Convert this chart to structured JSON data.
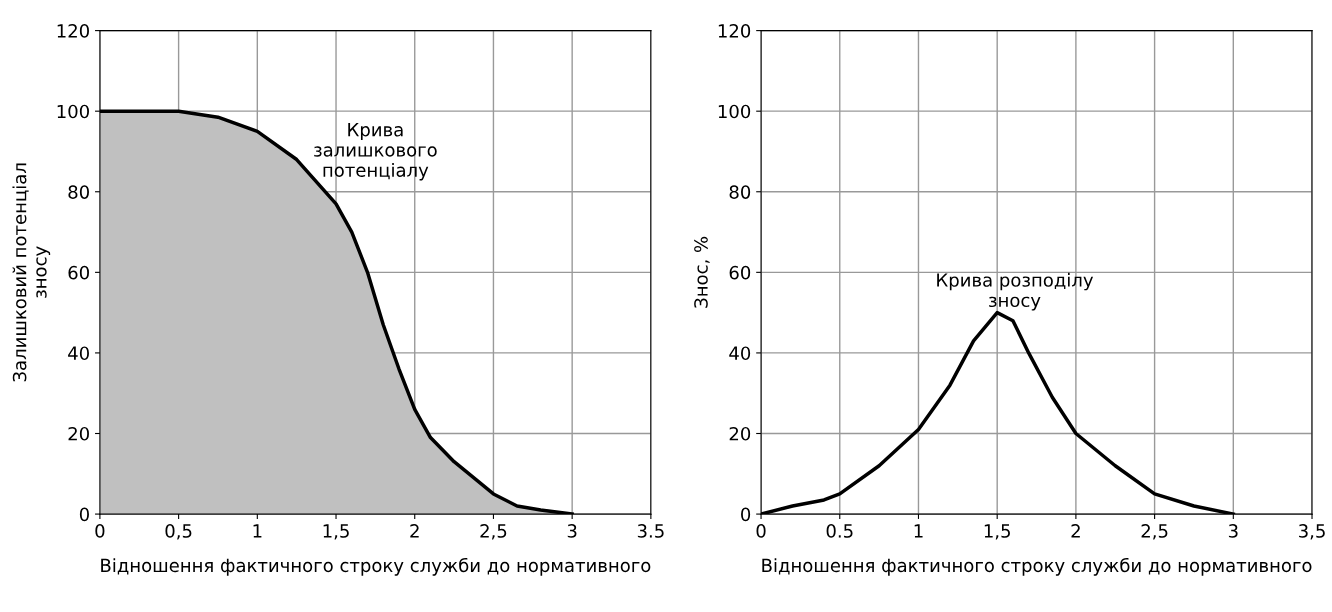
{
  "chart_data": [
    {
      "type": "area",
      "xlabel": "Відношення фактичного строку служби до нормативного",
      "ylabel": "Залишковий потенціал\nзносу",
      "series": [
        {
          "color": "#c0c0c0",
          "x": [
            0,
            0.25,
            0.5,
            0.75,
            1,
            1.25,
            1.5,
            1.6,
            1.7,
            1.8,
            1.9,
            2,
            2.1,
            2.25,
            2.5,
            2.65,
            2.8,
            3
          ],
          "values": [
            100,
            100,
            100,
            98.5,
            95,
            88,
            77,
            70,
            60,
            47,
            36,
            26,
            19,
            13,
            5,
            2,
            1,
            0
          ]
        }
      ],
      "xlim": [
        0,
        3.5
      ],
      "xticks": [
        0,
        {
          "value": 0.5,
          "label": "0,5"
        },
        1,
        {
          "value": 1.5,
          "label": "1,5"
        },
        2,
        {
          "value": 2.5,
          "label": "2,5"
        },
        3,
        3.5
      ],
      "ylim": [
        0,
        120
      ],
      "yticks": [
        0,
        20,
        40,
        60,
        80,
        100,
        120
      ],
      "grid": true,
      "annotations": [
        "Крива\nзалишкового\nпотенціалу"
      ]
    },
    {
      "type": "line",
      "xlabel": "Відношення фактичного строку служби до нормативного",
      "ylabel": "Знос, %",
      "series": [
        {
          "color": "#000000",
          "x": [
            0,
            0.2,
            0.4,
            0.5,
            0.75,
            1,
            1.2,
            1.35,
            1.5,
            1.6,
            1.7,
            1.85,
            2,
            2.25,
            2.5,
            2.75,
            3
          ],
          "values": [
            0,
            2,
            3.5,
            5,
            12,
            21,
            32,
            43,
            50,
            48,
            40,
            29,
            20,
            12,
            5,
            2,
            0
          ]
        }
      ],
      "xlim": [
        0,
        3.5
      ],
      "xticks": [
        0,
        0.5,
        1,
        {
          "value": 1.5,
          "label": "1,5"
        },
        2,
        {
          "value": 2.5,
          "label": "2,5"
        },
        3,
        {
          "value": 3.5,
          "label": "3,5"
        }
      ],
      "ylim": [
        0,
        120
      ],
      "yticks": [
        0,
        20,
        40,
        60,
        80,
        100,
        120
      ],
      "grid": true,
      "annotations": [
        "Крива розподілу\nзносу"
      ]
    }
  ]
}
